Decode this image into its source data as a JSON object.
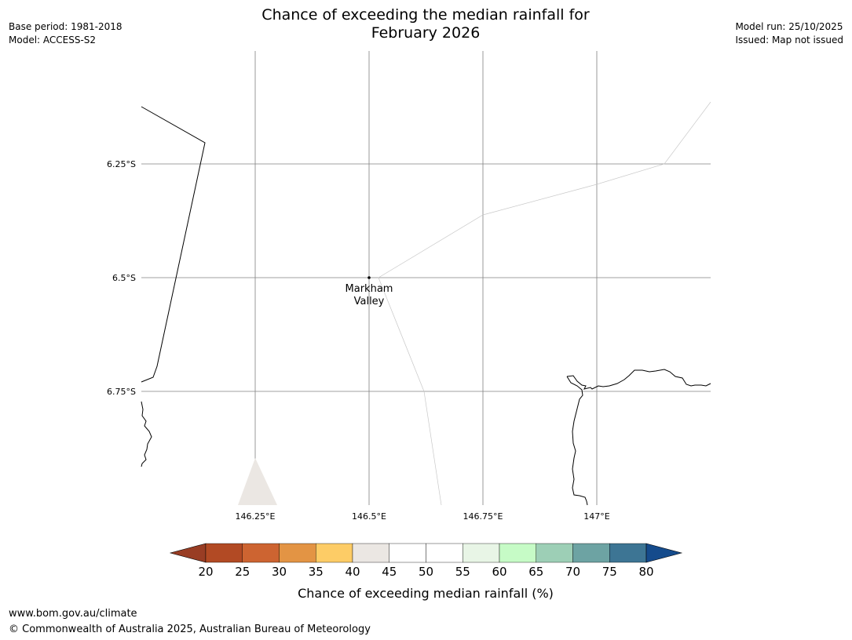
{
  "header": {
    "base_period": "Base period: 1981-2018",
    "model": "Model: ACCESS-S2",
    "model_run": "Model run: 25/10/2025",
    "issued": "Issued: Map not issued",
    "title_line1": "Chance of exceeding the median rainfall for",
    "title_line2": "February 2026"
  },
  "map": {
    "lat_labels": [
      "6.25°S",
      "6.5°S",
      "6.75°S"
    ],
    "lon_labels": [
      "146.25°E",
      "146.5°E",
      "146.75°E",
      "147°E"
    ],
    "place": {
      "name_line1": "Markham",
      "name_line2": "Valley"
    },
    "fill_colors": {
      "near_median": "#ebe7e3",
      "line": "#000000",
      "grid": "#808080",
      "boundary": "#c8c8c8"
    }
  },
  "legend": {
    "title": "Chance of exceeding median rainfall (%)",
    "ticks": [
      "20",
      "25",
      "30",
      "35",
      "40",
      "45",
      "50",
      "55",
      "60",
      "65",
      "70",
      "75",
      "80"
    ],
    "colors": [
      "#993d24",
      "#b24a24",
      "#cd6431",
      "#e39444",
      "#fdcc66",
      "#ebe7e3",
      "#ffffff",
      "#ffffff",
      "#e8f5e6",
      "#c6fbc6",
      "#9dcfb6",
      "#6da3a3",
      "#3d7594",
      "#154b8c"
    ]
  },
  "footer": {
    "url": "www.bom.gov.au/climate",
    "copyright": "© Commonwealth of Australia 2025, Australian Bureau of Meteorology"
  }
}
